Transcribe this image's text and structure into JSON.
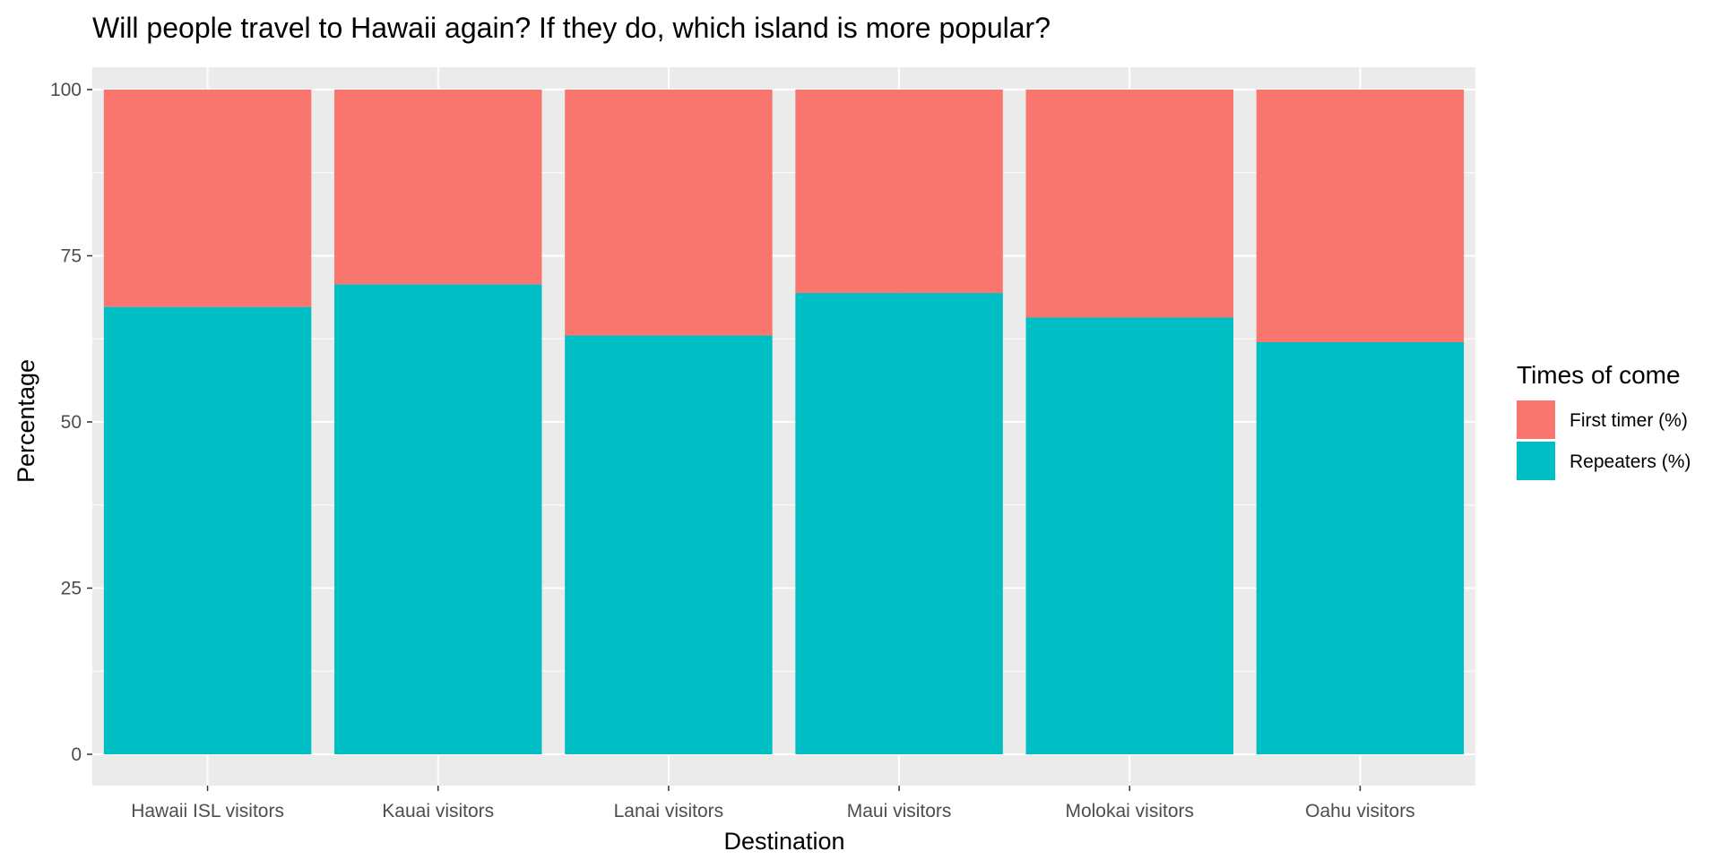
{
  "chart_data": {
    "type": "bar",
    "stacked": true,
    "title": "Will people travel to Hawaii again? If they do, which island is more popular?",
    "xlabel": "Destination",
    "ylabel": "Percentage",
    "ylim": [
      0,
      100
    ],
    "yticks": [
      0,
      25,
      50,
      75,
      100
    ],
    "grid": true,
    "legend_position": "right",
    "legend_title": "Times of come",
    "categories": [
      "Hawaii ISL visitors",
      "Kauai visitors",
      "Lanai visitors",
      "Maui visitors",
      "Molokai visitors",
      "Oahu visitors"
    ],
    "series": [
      {
        "name": "Repeaters (%)",
        "color": "#00bfc4",
        "values": [
          67.3,
          70.7,
          63.0,
          69.4,
          65.7,
          62.0
        ]
      },
      {
        "name": "First timer (%)",
        "color": "#f8766d",
        "values": [
          32.7,
          29.3,
          37.0,
          30.6,
          34.3,
          38.0
        ]
      }
    ],
    "legend_order": [
      "First timer (%)",
      "Repeaters (%)"
    ],
    "panel_background": "#ebebeb"
  }
}
